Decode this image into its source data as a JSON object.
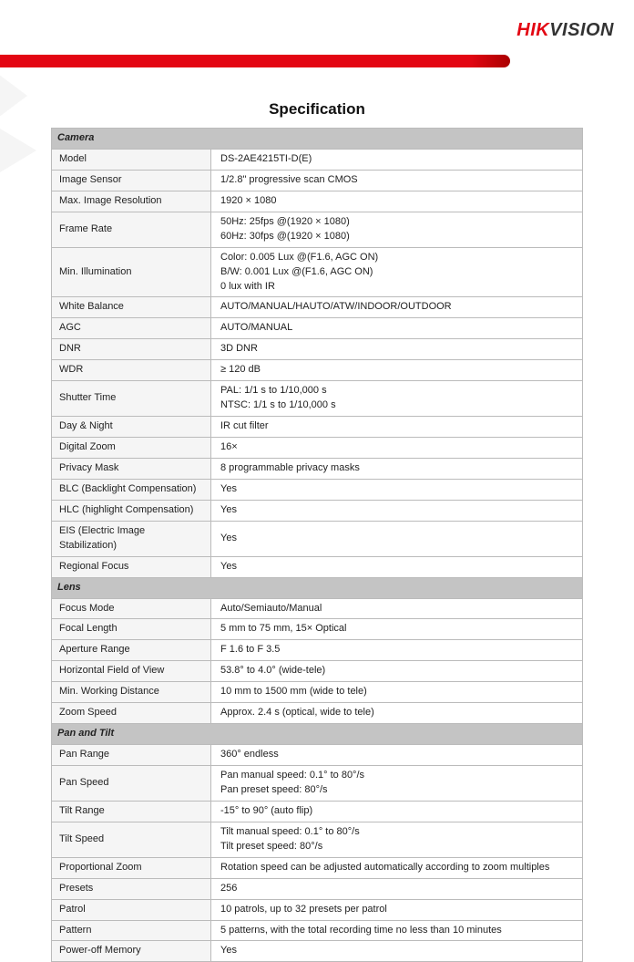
{
  "logo": {
    "part1": "HIK",
    "part2": "VISION"
  },
  "title": "Specification",
  "colors": {
    "brand_red": "#e30613",
    "section_bg": "#c4c4c4",
    "label_bg": "#f5f5f5",
    "border": "#bbbbbb",
    "text": "#222222"
  },
  "sections": [
    {
      "title": "Camera",
      "rows": [
        {
          "label": "Model",
          "value": "DS-2AE4215TI-D(E)"
        },
        {
          "label": "Image Sensor",
          "value": "1/2.8\" progressive scan CMOS"
        },
        {
          "label": "Max. Image Resolution",
          "value": "1920 × 1080"
        },
        {
          "label": "Frame Rate",
          "value": "50Hz: 25fps @(1920 × 1080)\n60Hz: 30fps @(1920 × 1080)"
        },
        {
          "label": "Min. Illumination",
          "value": "Color: 0.005 Lux @(F1.6, AGC ON)\nB/W: 0.001 Lux @(F1.6, AGC ON)\n0 lux with IR"
        },
        {
          "label": "White Balance",
          "value": "AUTO/MANUAL/HAUTO/ATW/INDOOR/OUTDOOR"
        },
        {
          "label": "AGC",
          "value": "AUTO/MANUAL"
        },
        {
          "label": "DNR",
          "value": "3D DNR"
        },
        {
          "label": "WDR",
          "value": "≥ 120 dB"
        },
        {
          "label": "Shutter Time",
          "value": "PAL: 1/1 s to 1/10,000 s\nNTSC: 1/1 s to 1/10,000 s"
        },
        {
          "label": "Day & Night",
          "value": "IR cut filter"
        },
        {
          "label": "Digital Zoom",
          "value": "16×"
        },
        {
          "label": "Privacy Mask",
          "value": "8 programmable privacy masks"
        },
        {
          "label": "BLC (Backlight Compensation)",
          "value": "Yes"
        },
        {
          "label": "HLC (highlight Compensation)",
          "value": "Yes"
        },
        {
          "label": "EIS (Electric Image Stabilization)",
          "value": "Yes"
        },
        {
          "label": "Regional Focus",
          "value": "Yes"
        }
      ]
    },
    {
      "title": "Lens",
      "rows": [
        {
          "label": "Focus Mode",
          "value": "Auto/Semiauto/Manual"
        },
        {
          "label": "Focal Length",
          "value": "5 mm to 75 mm, 15× Optical"
        },
        {
          "label": "Aperture Range",
          "value": "F 1.6 to F 3.5"
        },
        {
          "label": "Horizontal Field of View",
          "value": "53.8° to 4.0° (wide-tele)"
        },
        {
          "label": "Min. Working Distance",
          "value": "10 mm to 1500 mm (wide to tele)"
        },
        {
          "label": "Zoom Speed",
          "value": "Approx. 2.4 s (optical, wide to tele)"
        }
      ]
    },
    {
      "title": "Pan and Tilt",
      "rows": [
        {
          "label": "Pan Range",
          "value": "360° endless"
        },
        {
          "label": "Pan Speed",
          "value": "Pan manual speed: 0.1° to 80°/s\nPan preset speed: 80°/s"
        },
        {
          "label": "Tilt Range",
          "value": "-15° to 90° (auto flip)"
        },
        {
          "label": "Tilt Speed",
          "value": "Tilt manual speed: 0.1° to 80°/s\nTilt preset speed: 80°/s"
        },
        {
          "label": "Proportional Zoom",
          "value": "Rotation speed can be adjusted automatically according to zoom multiples"
        },
        {
          "label": "Presets",
          "value": "256"
        },
        {
          "label": "Patrol",
          "value": "10 patrols, up to 32 presets per patrol"
        },
        {
          "label": "Pattern",
          "value": "5 patterns, with the total recording time no less than 10 minutes"
        },
        {
          "label": "Power-off Memory",
          "value": "Yes"
        }
      ]
    }
  ]
}
